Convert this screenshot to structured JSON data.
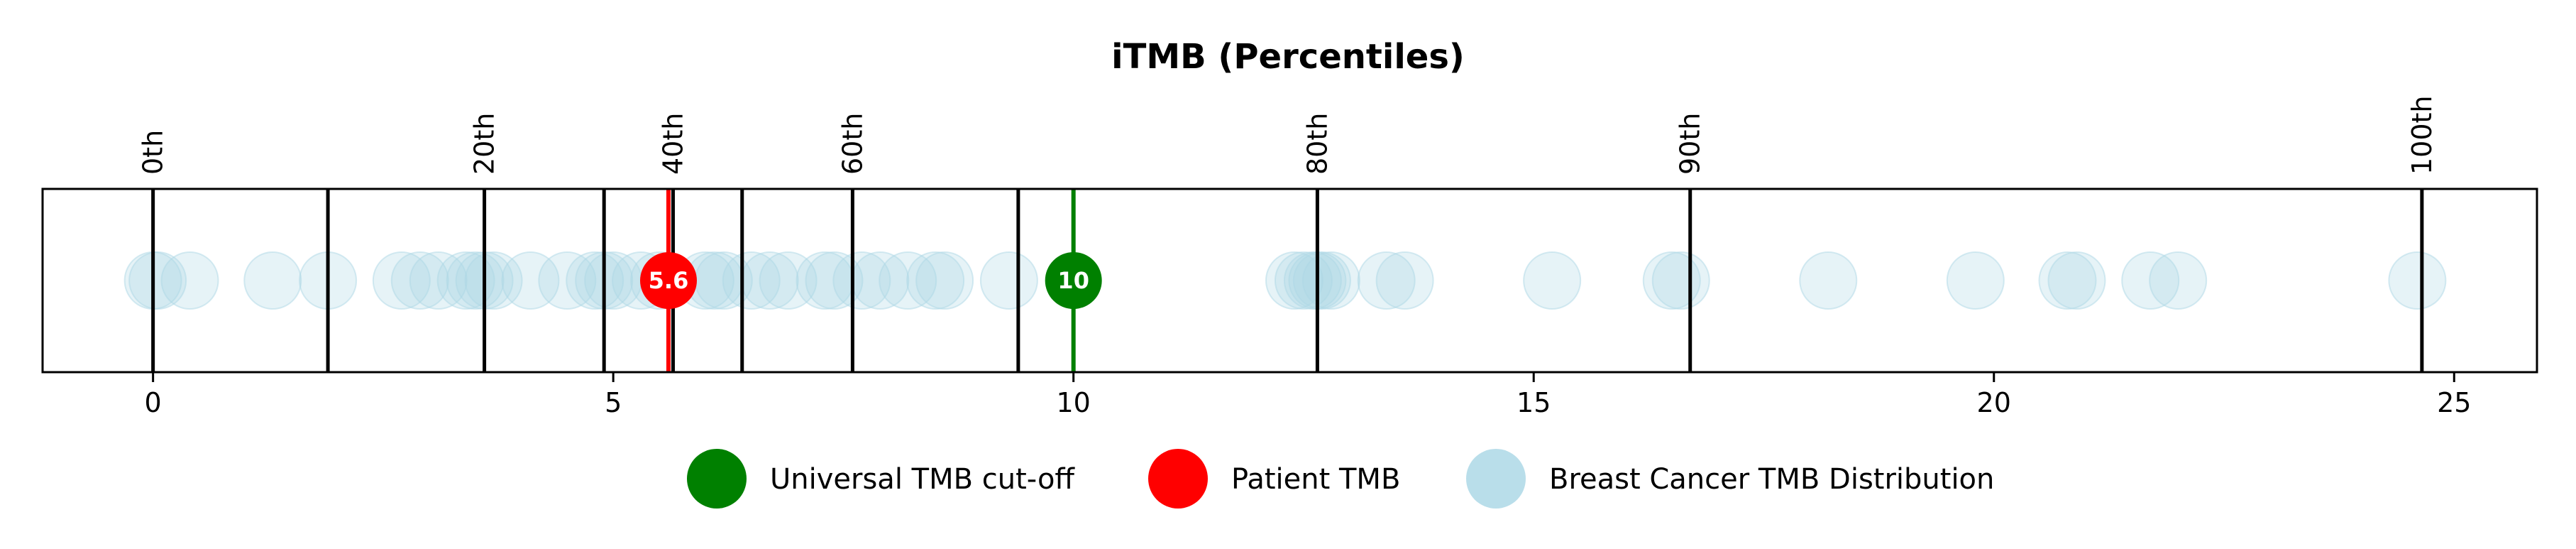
{
  "chart_data": {
    "type": "scatter",
    "title": "iTMB (Percentiles)",
    "xlim": [
      -1.2,
      25.9
    ],
    "x_ticks": [
      0,
      5,
      10,
      15,
      20,
      25
    ],
    "grid": false,
    "legend_placement": "bottom-center",
    "percentile_lines": [
      {
        "value": 0,
        "label": "0th"
      },
      {
        "value": 1.9,
        "label": ""
      },
      {
        "value": 3.6,
        "label": "20th"
      },
      {
        "value": 4.9,
        "label": ""
      },
      {
        "value": 5.65,
        "label": "40th"
      },
      {
        "value": 6.4,
        "label": ""
      },
      {
        "value": 7.6,
        "label": "60th"
      },
      {
        "value": 9.4,
        "label": ""
      },
      {
        "value": 12.65,
        "label": "80th"
      },
      {
        "value": 16.7,
        "label": "90th"
      },
      {
        "value": 24.65,
        "label": "100th"
      }
    ],
    "distribution": [
      0,
      0.05,
      0.4,
      1.3,
      1.9,
      2.7,
      2.9,
      3.1,
      3.4,
      3.5,
      3.6,
      3.7,
      4.1,
      4.5,
      4.8,
      4.9,
      5.0,
      5.3,
      5.5,
      6.0,
      6.1,
      6.2,
      6.5,
      6.7,
      6.9,
      7.3,
      7.4,
      7.7,
      7.9,
      8.2,
      8.5,
      8.6,
      9.3,
      12.4,
      12.5,
      12.6,
      12.65,
      12.7,
      12.8,
      13.4,
      13.6,
      15.2,
      16.5,
      16.6,
      18.2,
      19.8,
      20.8,
      20.9,
      21.7,
      22.0,
      24.6
    ],
    "patient": {
      "value": 5.6,
      "label": "5.6",
      "color": "#ff0000"
    },
    "cutoff": {
      "value": 10,
      "label": "10",
      "color": "#008000"
    },
    "distribution_color": "#add8e6",
    "legend": [
      {
        "label": "Universal TMB cut-off",
        "color": "#008000"
      },
      {
        "label": "Patient TMB",
        "color": "#ff0000"
      },
      {
        "label": "Breast Cancer TMB Distribution",
        "color": "#add8e6"
      }
    ]
  }
}
